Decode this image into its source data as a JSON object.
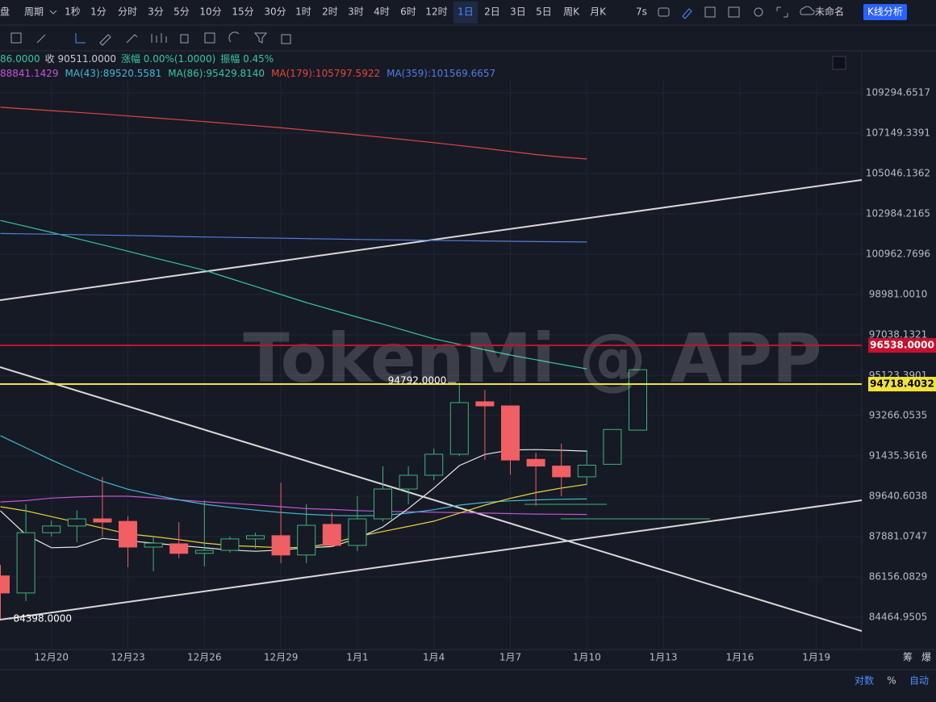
{
  "toolbar": {
    "left_clipped": "盘",
    "period_menu": "周期",
    "periods": [
      "1秒",
      "1分",
      "分时",
      "3分",
      "5分",
      "10分",
      "15分",
      "30分",
      "1时",
      "2时",
      "3时",
      "4时",
      "6时",
      "12时",
      "1日",
      "2日",
      "3日",
      "5日",
      "周K",
      "月K"
    ],
    "refresh": "7s",
    "layout_name": "未命名",
    "analysis_button": "K线分析"
  },
  "info": {
    "line1": [
      "86.0000",
      "收 90511.0000",
      "涨幅 0.00%(1.0000)",
      "振幅 0.45%"
    ]
  },
  "watermark": "TokenMi @ APP",
  "footer": {
    "right_icons": [
      "筹",
      "爆"
    ],
    "buttons": [
      "对数",
      "%",
      "自动"
    ]
  },
  "chart_data": {
    "type": "candlestick",
    "log_scale": true,
    "grid": true,
    "categories": [
      null,
      null,
      "12月20",
      null,
      null,
      "12月23",
      null,
      null,
      "12月26",
      null,
      null,
      "12月29",
      null,
      null,
      "1月1",
      null,
      null,
      "1月4",
      null,
      null,
      "1月7",
      null,
      null,
      "1月10",
      null,
      null,
      "1月13",
      null,
      null,
      "1月16",
      null,
      null,
      "1月19",
      null
    ],
    "open": [
      86200,
      85480,
      88050,
      88340,
      88650,
      88540,
      87430,
      87570,
      87160,
      87290,
      87780,
      87920,
      87090,
      88410,
      87500,
      88650,
      89960,
      90570,
      91510,
      93900,
      93710,
      91280,
      90980,
      90500,
      91060,
      92600,
      null,
      null,
      null,
      null,
      null,
      null,
      null,
      null
    ],
    "high": [
      86670,
      89290,
      88580,
      89020,
      90500,
      88760,
      87880,
      88510,
      89460,
      87880,
      88050,
      90230,
      89290,
      88920,
      89640,
      90970,
      90970,
      91770,
      94792,
      94450,
      93710,
      91580,
      91990,
      91690,
      92630,
      95390,
      null,
      null,
      null,
      null,
      null,
      null,
      null,
      null
    ],
    "low": [
      84398,
      85140,
      87881,
      87640,
      87880,
      86570,
      86400,
      86950,
      86600,
      87190,
      87360,
      86740,
      86740,
      87430,
      87260,
      88540,
      89290,
      90350,
      91435,
      91250,
      90600,
      89220,
      89640,
      90170,
      91060,
      92600,
      null,
      null,
      null,
      null,
      null,
      null,
      null,
      null
    ],
    "close": [
      85480,
      88050,
      88340,
      88650,
      88510,
      87430,
      87600,
      87160,
      87290,
      87780,
      87920,
      87090,
      88370,
      87500,
      88650,
      89960,
      90570,
      91510,
      93860,
      93710,
      91250,
      90980,
      90500,
      91020,
      92630,
      95390,
      null,
      null,
      null,
      null,
      null,
      null,
      null,
      null
    ],
    "up_color": "#3fb37a",
    "down_color": "#ef5f63",
    "series": [
      {
        "name": "88841.1429",
        "color": "#c455d6",
        "values": [
          89390,
          89450,
          89560,
          89610,
          89640,
          89640,
          89570,
          89480,
          89400,
          89330,
          89260,
          89180,
          89100,
          89060,
          89010,
          88980,
          88960,
          88940,
          88920,
          88900,
          88880,
          88860,
          88850,
          88841,
          null,
          null,
          null,
          null,
          null,
          null,
          null,
          null,
          null,
          null
        ]
      },
      {
        "name": "MA(43):89520.5581",
        "color": "#3fb9d6",
        "values": [
          92350,
          91800,
          91250,
          90750,
          90300,
          89950,
          89700,
          89480,
          89290,
          89150,
          89030,
          88930,
          88850,
          88800,
          88780,
          88800,
          88900,
          89050,
          89250,
          89370,
          89440,
          89480,
          89510,
          89520,
          null,
          null,
          null,
          null,
          null,
          null,
          null,
          null,
          null,
          null
        ]
      },
      {
        "name": "MA(86):95429.8140",
        "color": "#35c79a",
        "values": [
          102650,
          102350,
          102050,
          101740,
          101430,
          101110,
          100790,
          100480,
          100170,
          99770,
          99380,
          98980,
          98590,
          98240,
          97890,
          97550,
          97200,
          96850,
          96590,
          96330,
          96080,
          95860,
          95640,
          95430,
          null,
          null,
          null,
          null,
          null,
          null,
          null,
          null,
          null,
          null
        ]
      },
      {
        "name": "MA(179):105797.5922",
        "color": "#e2463f",
        "values": [
          108520,
          108430,
          108340,
          108250,
          108160,
          108060,
          107960,
          107860,
          107760,
          107650,
          107540,
          107430,
          107310,
          107190,
          107060,
          106930,
          106790,
          106650,
          106500,
          106350,
          106190,
          106030,
          105900,
          105797,
          null,
          null,
          null,
          null,
          null,
          null,
          null,
          null,
          null,
          null
        ]
      },
      {
        "name": "MA(359):101569.6657",
        "color": "#4f7fe0",
        "values": [
          101995,
          101975,
          101955,
          101935,
          101915,
          101895,
          101870,
          101845,
          101820,
          101800,
          101780,
          101760,
          101740,
          101720,
          101700,
          101680,
          101665,
          101650,
          101635,
          101620,
          101605,
          101590,
          101580,
          101570,
          null,
          null,
          null,
          null,
          null,
          null,
          null,
          null,
          null,
          null
        ]
      },
      {
        "color": "#e8e8e8",
        "values": [
          89000,
          87960,
          87400,
          87430,
          87800,
          87700,
          87600,
          87500,
          87400,
          87300,
          87250,
          87300,
          87400,
          87450,
          87800,
          88300,
          89100,
          90000,
          91000,
          91500,
          91700,
          91720,
          91690,
          91650,
          null,
          null,
          null,
          null,
          null,
          null,
          null,
          null,
          null,
          null
        ]
      },
      {
        "color": "#e6d33c",
        "values": [
          89180,
          89000,
          88750,
          88500,
          88250,
          88000,
          87880,
          87750,
          87600,
          87500,
          87450,
          87400,
          87420,
          87600,
          87880,
          88100,
          88320,
          88550,
          88900,
          89250,
          89550,
          89800,
          90000,
          90170,
          null,
          null,
          null,
          null,
          null,
          null,
          null,
          null,
          null,
          null
        ]
      }
    ],
    "ylim": [
      83136,
      109947
    ],
    "yticks": [
      84464.9505,
      86156.0829,
      87881.0747,
      89640.6038,
      91435.3616,
      93266.0535,
      95123.3901,
      97038.1321,
      {
        "value": 98981.001,
        "label": "98981.0010"
      },
      100962.7696,
      102984.2165,
      105046.1362,
      107149.3391,
      109294.6517
    ],
    "price_lines": [
      {
        "value": 96538,
        "label": "96538.0000",
        "color": "#c8102e"
      },
      {
        "value": 94718.4032,
        "label": "94718.4032",
        "color": "#f2e33a"
      }
    ],
    "annotations": [
      {
        "value": 94792,
        "label": "94792.0000"
      },
      {
        "value": 84398,
        "label": "84398.0000"
      }
    ]
  }
}
